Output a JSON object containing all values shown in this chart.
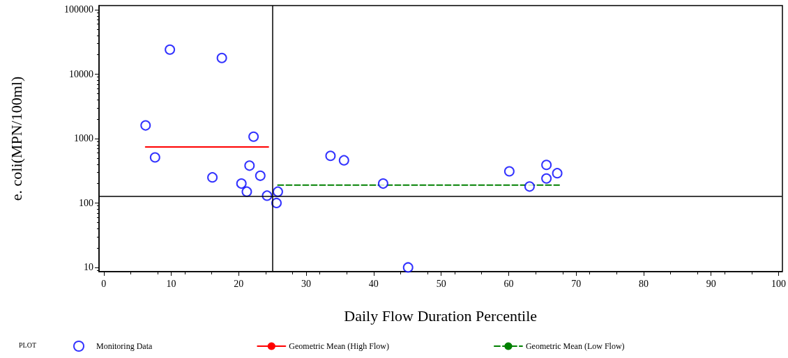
{
  "chart_data": {
    "type": "scatter",
    "xlabel": "Daily Flow Duration Percentile",
    "ylabel": "e. coli(MPN/100ml)",
    "legend_title": "PLOT",
    "legend": "bottom",
    "log": "y",
    "marker": "circle",
    "grid": false,
    "xlim": [
      -0.7,
      100.5
    ],
    "xticks": [
      0,
      10,
      20,
      30,
      40,
      50,
      60,
      70,
      80,
      90,
      100
    ],
    "ylim": [
      8.6,
      116000
    ],
    "yticks": [
      10,
      100,
      1000,
      10000,
      100000
    ],
    "series": [
      {
        "name": "Monitoring Data",
        "color": "#0000ff",
        "x": [
          6.2,
          9.8,
          7.6,
          17.5,
          22.2,
          16.1,
          21.6,
          23.2,
          20.4,
          21.2,
          24.2,
          25.6,
          25.8,
          33.6,
          35.6,
          41.4,
          45.1,
          60.1,
          63.1,
          65.6,
          65.6,
          67.2
        ],
        "values": [
          1600,
          24000,
          510,
          17800,
          1070,
          250,
          380,
          265,
          200,
          150,
          130,
          100,
          150,
          540,
          460,
          200,
          10,
          310,
          180,
          390,
          240,
          290
        ]
      },
      {
        "name": "Geometric Mean (High Flow)",
        "type": "line",
        "color": "#ff0000",
        "line_style": "solid",
        "marker": "none",
        "x": [
          6.2,
          24.4
        ],
        "values": [
          740,
          740
        ]
      },
      {
        "name": "Geometric Mean (Low Flow)",
        "type": "line",
        "color": "#008000",
        "line_style": "dashed",
        "marker": "none",
        "x": [
          25.8,
          67.5
        ],
        "values": [
          190,
          190
        ]
      }
    ],
    "ref_lines": [
      {
        "axis": "x",
        "value": 25,
        "color": "#000000"
      },
      {
        "axis": "y",
        "value": 126,
        "color": "#000000"
      }
    ]
  }
}
